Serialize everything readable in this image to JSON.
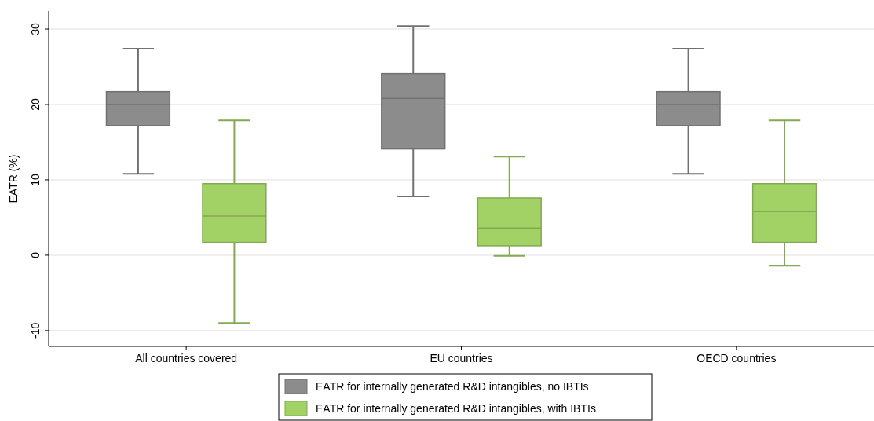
{
  "chart_data": {
    "type": "box",
    "ylabel": "EATR (%)",
    "categories": [
      "All countries covered",
      "EU countries",
      "OECD countries"
    ],
    "series": [
      {
        "name": "EATR for internally generated R&D intangibles, no IBTIs",
        "color": "#8c8c8c",
        "boxes": [
          {
            "low": 10.8,
            "q1": 17.2,
            "median": 20.0,
            "q3": 21.7,
            "high": 27.4
          },
          {
            "low": 7.8,
            "q1": 14.1,
            "median": 20.8,
            "q3": 24.1,
            "high": 30.4
          },
          {
            "low": 10.8,
            "q1": 17.2,
            "median": 20.0,
            "q3": 21.7,
            "high": 27.4
          }
        ]
      },
      {
        "name": "EATR for internally generated R&D intangibles, with IBTIs",
        "color": "#a2d165",
        "boxes": [
          {
            "low": -9.0,
            "q1": 1.7,
            "median": 5.2,
            "q3": 9.5,
            "high": 17.9
          },
          {
            "low": -0.1,
            "q1": 1.25,
            "median": 3.6,
            "q3": 7.6,
            "high": 13.1
          },
          {
            "low": -1.4,
            "q1": 1.7,
            "median": 5.8,
            "q3": 9.5,
            "high": 17.9
          }
        ]
      }
    ],
    "ylim": [
      -12.1,
      32.4
    ],
    "yticks": [
      {
        "value": -10,
        "label": "-10"
      },
      0,
      10,
      20,
      30
    ],
    "grid": "y",
    "legend": "bottom"
  }
}
